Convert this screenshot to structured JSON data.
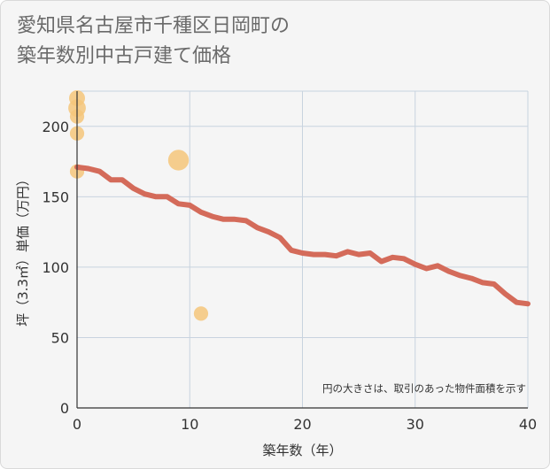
{
  "chart_data": {
    "type": "scatter+line",
    "title_lines": [
      "愛知県名古屋市千種区日岡町の",
      "築年数別中古戸建て価格"
    ],
    "xlabel": "築年数（年）",
    "ylabel": "坪（3.3㎡）単価（万円）",
    "xlim": [
      0,
      40
    ],
    "ylim": [
      0,
      225
    ],
    "xticks": [
      0,
      10,
      20,
      30,
      40
    ],
    "yticks": [
      0,
      50,
      100,
      150,
      200
    ],
    "grid": true,
    "note": "円の大きさは、取引のあった物件面積を示す",
    "scatter": [
      {
        "x": 0,
        "y": 220,
        "size": 1.0
      },
      {
        "x": 0,
        "y": 213,
        "size": 1.1
      },
      {
        "x": 0,
        "y": 207,
        "size": 0.9
      },
      {
        "x": 0,
        "y": 195,
        "size": 0.9
      },
      {
        "x": 0,
        "y": 168,
        "size": 0.9
      },
      {
        "x": 9,
        "y": 176,
        "size": 1.3
      },
      {
        "x": 11,
        "y": 67,
        "size": 0.9
      }
    ],
    "line": {
      "x": [
        0,
        1,
        2,
        3,
        4,
        5,
        6,
        7,
        8,
        9,
        10,
        11,
        12,
        13,
        14,
        15,
        16,
        17,
        18,
        19,
        20,
        21,
        22,
        23,
        24,
        25,
        26,
        27,
        28,
        29,
        30,
        31,
        32,
        33,
        34,
        35,
        36,
        37,
        38,
        39,
        40
      ],
      "y": [
        171,
        170,
        168,
        162,
        162,
        156,
        152,
        150,
        150,
        145,
        144,
        139,
        136,
        134,
        134,
        133,
        128,
        125,
        121,
        112,
        110,
        109,
        109,
        108,
        111,
        109,
        110,
        104,
        107,
        106,
        102,
        99,
        101,
        97,
        94,
        92,
        89,
        88,
        81,
        75,
        74
      ]
    },
    "colors": {
      "line": "#d46b5a",
      "bubble": "#f5c57a",
      "grid": "#c8d3df",
      "axis": "#333333"
    }
  }
}
